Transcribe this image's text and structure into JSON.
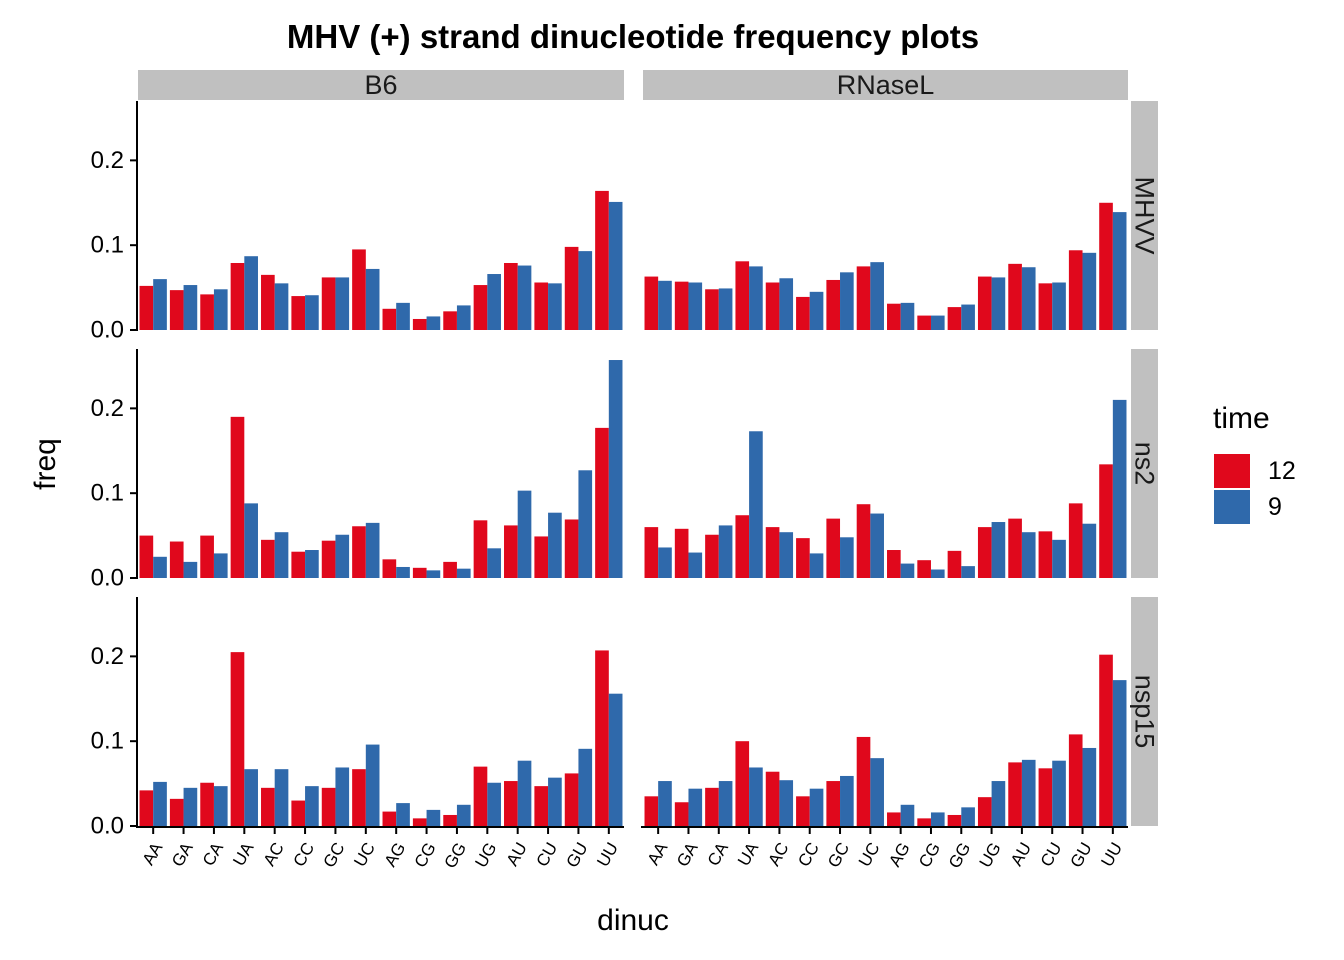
{
  "chart_data": {
    "type": "bar",
    "title": "MHV (+) strand dinucleotide frequency plots",
    "xlabel": "dinuc",
    "ylabel": "freq",
    "ylim": [
      0,
      0.27
    ],
    "yticks": [
      "0.0",
      "0.1",
      "0.2"
    ],
    "categories": [
      "AA",
      "GA",
      "CA",
      "UA",
      "AC",
      "CC",
      "GC",
      "UC",
      "AG",
      "CG",
      "GG",
      "UG",
      "AU",
      "CU",
      "GU",
      "UU"
    ],
    "col_facets": [
      "B6",
      "RNaseL"
    ],
    "row_facets": [
      "MHVV",
      "ns2",
      "nsp15"
    ],
    "legend": {
      "title": "time",
      "position": "right",
      "items": [
        {
          "label": "12",
          "color": "#E0081C"
        },
        {
          "label": "9",
          "color": "#2F69AB"
        }
      ]
    },
    "panels": [
      {
        "row": "MHVV",
        "col": "B6",
        "series": [
          {
            "name": "12",
            "values": [
              0.052,
              0.047,
              0.042,
              0.079,
              0.065,
              0.04,
              0.062,
              0.095,
              0.025,
              0.013,
              0.022,
              0.053,
              0.079,
              0.056,
              0.098,
              0.164
            ]
          },
          {
            "name": "9",
            "values": [
              0.06,
              0.053,
              0.048,
              0.087,
              0.055,
              0.041,
              0.062,
              0.072,
              0.032,
              0.016,
              0.029,
              0.066,
              0.076,
              0.055,
              0.093,
              0.151
            ]
          }
        ]
      },
      {
        "row": "MHVV",
        "col": "RNaseL",
        "series": [
          {
            "name": "12",
            "values": [
              0.063,
              0.057,
              0.048,
              0.081,
              0.056,
              0.039,
              0.059,
              0.075,
              0.031,
              0.017,
              0.027,
              0.063,
              0.078,
              0.055,
              0.094,
              0.15
            ]
          },
          {
            "name": "9",
            "values": [
              0.058,
              0.056,
              0.049,
              0.075,
              0.061,
              0.045,
              0.068,
              0.08,
              0.032,
              0.017,
              0.03,
              0.062,
              0.074,
              0.056,
              0.091,
              0.139
            ]
          }
        ]
      },
      {
        "row": "ns2",
        "col": "B6",
        "series": [
          {
            "name": "12",
            "values": [
              0.05,
              0.043,
              0.05,
              0.19,
              0.045,
              0.031,
              0.044,
              0.061,
              0.022,
              0.012,
              0.019,
              0.068,
              0.062,
              0.049,
              0.069,
              0.177
            ]
          },
          {
            "name": "9",
            "values": [
              0.025,
              0.019,
              0.029,
              0.088,
              0.054,
              0.033,
              0.051,
              0.065,
              0.013,
              0.009,
              0.011,
              0.035,
              0.103,
              0.077,
              0.127,
              0.257
            ]
          }
        ]
      },
      {
        "row": "ns2",
        "col": "RNaseL",
        "series": [
          {
            "name": "12",
            "values": [
              0.06,
              0.058,
              0.051,
              0.074,
              0.06,
              0.047,
              0.07,
              0.087,
              0.033,
              0.021,
              0.032,
              0.06,
              0.07,
              0.055,
              0.088,
              0.134
            ]
          },
          {
            "name": "9",
            "values": [
              0.036,
              0.03,
              0.062,
              0.173,
              0.054,
              0.029,
              0.048,
              0.076,
              0.017,
              0.01,
              0.014,
              0.066,
              0.054,
              0.045,
              0.064,
              0.21
            ]
          }
        ]
      },
      {
        "row": "nsp15",
        "col": "B6",
        "series": [
          {
            "name": "12",
            "values": [
              0.042,
              0.032,
              0.051,
              0.205,
              0.045,
              0.03,
              0.045,
              0.067,
              0.017,
              0.009,
              0.013,
              0.07,
              0.053,
              0.047,
              0.062,
              0.207
            ]
          },
          {
            "name": "9",
            "values": [
              0.052,
              0.045,
              0.047,
              0.067,
              0.067,
              0.047,
              0.069,
              0.096,
              0.027,
              0.019,
              0.025,
              0.051,
              0.077,
              0.057,
              0.091,
              0.156
            ]
          }
        ]
      },
      {
        "row": "nsp15",
        "col": "RNaseL",
        "series": [
          {
            "name": "12",
            "values": [
              0.035,
              0.028,
              0.045,
              0.1,
              0.064,
              0.035,
              0.053,
              0.105,
              0.016,
              0.009,
              0.013,
              0.034,
              0.075,
              0.068,
              0.108,
              0.202
            ]
          },
          {
            "name": "9",
            "values": [
              0.053,
              0.044,
              0.053,
              0.069,
              0.054,
              0.044,
              0.059,
              0.08,
              0.025,
              0.016,
              0.022,
              0.053,
              0.078,
              0.077,
              0.092,
              0.172
            ]
          }
        ]
      }
    ]
  }
}
